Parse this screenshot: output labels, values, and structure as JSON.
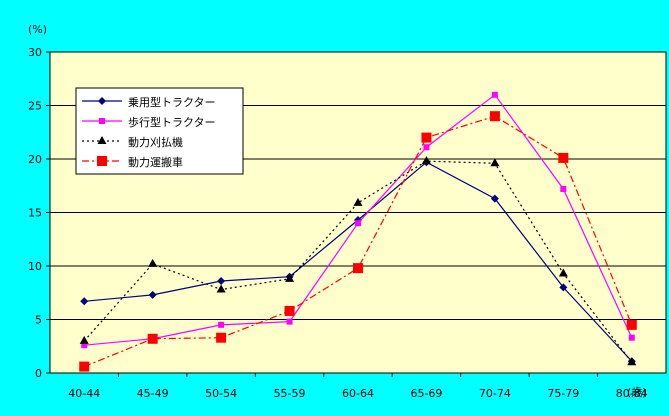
{
  "chart_data": {
    "type": "line",
    "unit_label": "(%)",
    "x_unit_label": "(歳)",
    "categories": [
      "40-44",
      "45-49",
      "50-54",
      "55-59",
      "60-64",
      "65-69",
      "70-74",
      "75-79",
      "80-84"
    ],
    "ylim": [
      0,
      30
    ],
    "yticks": [
      0,
      5,
      10,
      15,
      20,
      25,
      30
    ],
    "grid": true,
    "legend_position": "top-left",
    "plot_background": "#ffffcc",
    "page_background": "#00ffff",
    "series": [
      {
        "name": "乗用型トラクター",
        "color": "#000080",
        "dash": "solid",
        "marker": "diamond",
        "values": [
          6.7,
          7.3,
          8.6,
          9.0,
          14.3,
          19.7,
          16.3,
          8.0,
          1.1
        ]
      },
      {
        "name": "歩行型トラクター",
        "color": "#ff00ff",
        "dash": "solid",
        "marker": "square-small",
        "values": [
          2.6,
          3.2,
          4.5,
          4.8,
          14.0,
          21.1,
          26.0,
          17.2,
          3.3
        ]
      },
      {
        "name": "動力刈払機",
        "color": "#000000",
        "dash": "dotted",
        "marker": "triangle",
        "values": [
          3.0,
          10.2,
          7.8,
          8.8,
          15.9,
          19.8,
          19.6,
          9.3,
          1.0
        ]
      },
      {
        "name": "動力運搬車",
        "color": "#ff0000",
        "dash": "dashdot",
        "marker": "square",
        "values": [
          0.6,
          3.2,
          3.3,
          5.8,
          9.8,
          22.0,
          24.0,
          20.1,
          4.5
        ]
      }
    ]
  }
}
